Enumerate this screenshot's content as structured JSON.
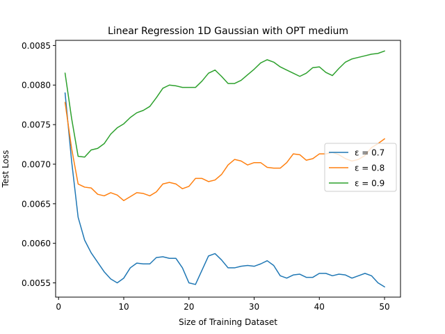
{
  "chart_data": {
    "type": "line",
    "title": "Linear Regression 1D Gaussian with OPT medium",
    "xlabel": "Size of Training Dataset",
    "ylabel": "Test Loss",
    "xlim": [
      -0.45,
      52.45
    ],
    "ylim": [
      0.00532,
      0.008565
    ],
    "x_ticks": [
      0,
      10,
      20,
      30,
      40,
      50
    ],
    "y_ticks": [
      0.0055,
      0.006,
      0.0065,
      0.007,
      0.0075,
      0.008,
      0.0085
    ],
    "y_tick_labels": [
      "0.0055",
      "0.0060",
      "0.0065",
      "0.0070",
      "0.0075",
      "0.0080",
      "0.0085"
    ],
    "grid": false,
    "legend_position": "center-right",
    "x": [
      1,
      2,
      3,
      4,
      5,
      6,
      7,
      8,
      9,
      10,
      11,
      12,
      13,
      14,
      15,
      16,
      17,
      18,
      19,
      20,
      21,
      22,
      23,
      24,
      25,
      26,
      27,
      28,
      29,
      30,
      31,
      32,
      33,
      34,
      35,
      36,
      37,
      38,
      39,
      40,
      41,
      42,
      43,
      44,
      45,
      46,
      47,
      48,
      49,
      50
    ],
    "series": [
      {
        "name": "ε = 0.7",
        "color": "#1f77b4",
        "values": [
          0.0079,
          0.00704,
          0.00633,
          0.00604,
          0.00588,
          0.00576,
          0.00564,
          0.00555,
          0.0055,
          0.00556,
          0.00569,
          0.00575,
          0.00574,
          0.00574,
          0.00582,
          0.00583,
          0.00581,
          0.00581,
          0.00569,
          0.0055,
          0.00548,
          0.00566,
          0.00584,
          0.00587,
          0.00579,
          0.00569,
          0.00569,
          0.00571,
          0.00572,
          0.00571,
          0.00574,
          0.00578,
          0.00572,
          0.00559,
          0.00556,
          0.0056,
          0.00561,
          0.00557,
          0.00557,
          0.00562,
          0.00562,
          0.00559,
          0.00561,
          0.0056,
          0.00556,
          0.00559,
          0.00562,
          0.00559,
          0.0055,
          0.00545
        ]
      },
      {
        "name": "ε = 0.8",
        "color": "#ff7f0e",
        "values": [
          0.00778,
          0.0072,
          0.00675,
          0.00671,
          0.0067,
          0.00662,
          0.0066,
          0.00664,
          0.00661,
          0.00654,
          0.00659,
          0.00664,
          0.00663,
          0.0066,
          0.00665,
          0.00675,
          0.00677,
          0.00675,
          0.00669,
          0.00672,
          0.00682,
          0.00682,
          0.00678,
          0.0068,
          0.00687,
          0.00699,
          0.00706,
          0.00704,
          0.00699,
          0.00702,
          0.00702,
          0.00696,
          0.00695,
          0.00695,
          0.00702,
          0.00713,
          0.00712,
          0.00705,
          0.00707,
          0.00713,
          0.00713,
          0.00715,
          0.00712,
          0.00707,
          0.00704,
          0.00706,
          0.00711,
          0.00721,
          0.00726,
          0.00732
        ]
      },
      {
        "name": "ε = 0.9",
        "color": "#2ca02c",
        "values": [
          0.00815,
          0.00758,
          0.0071,
          0.00709,
          0.00718,
          0.0072,
          0.00726,
          0.00738,
          0.00746,
          0.00751,
          0.00759,
          0.00765,
          0.00768,
          0.00773,
          0.00784,
          0.00796,
          0.008,
          0.00799,
          0.00797,
          0.00797,
          0.00797,
          0.00805,
          0.00815,
          0.00819,
          0.00811,
          0.00802,
          0.00802,
          0.00806,
          0.00813,
          0.0082,
          0.00828,
          0.00832,
          0.00829,
          0.00823,
          0.00819,
          0.00815,
          0.00811,
          0.00815,
          0.00822,
          0.00823,
          0.00816,
          0.00812,
          0.00821,
          0.00829,
          0.00833,
          0.00835,
          0.00837,
          0.00839,
          0.0084,
          0.00843
        ]
      }
    ]
  }
}
